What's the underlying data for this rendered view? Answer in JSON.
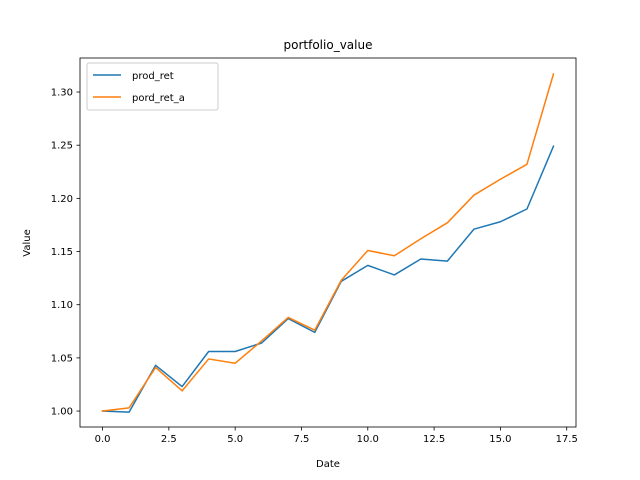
{
  "chart_data": {
    "type": "line",
    "title": "portfolio_value",
    "xlabel": "Date",
    "ylabel": "Value",
    "xlim": [
      -0.85,
      17.85
    ],
    "ylim": [
      0.985,
      1.332
    ],
    "xticks": [
      0.0,
      2.5,
      5.0,
      7.5,
      10.0,
      12.5,
      15.0,
      17.5
    ],
    "xtick_labels": [
      "0.0",
      "2.5",
      "5.0",
      "7.5",
      "10.0",
      "12.5",
      "15.0",
      "17.5"
    ],
    "yticks": [
      1.0,
      1.05,
      1.1,
      1.15,
      1.2,
      1.25,
      1.3
    ],
    "ytick_labels": [
      "1.00",
      "1.05",
      "1.10",
      "1.15",
      "1.20",
      "1.25",
      "1.30"
    ],
    "grid": false,
    "legend_position": "top-left",
    "x": [
      0,
      1,
      2,
      3,
      4,
      5,
      6,
      7,
      8,
      9,
      10,
      11,
      12,
      13,
      14,
      15,
      16,
      17
    ],
    "series": [
      {
        "name": "prod_ret",
        "color": "#1f77b4",
        "values": [
          1.0,
          0.999,
          1.043,
          1.023,
          1.056,
          1.056,
          1.064,
          1.087,
          1.074,
          1.122,
          1.137,
          1.128,
          1.143,
          1.141,
          1.171,
          1.178,
          1.19,
          1.249
        ]
      },
      {
        "name": "pord_ret_a",
        "color": "#ff7f0e",
        "values": [
          1.0,
          1.003,
          1.041,
          1.019,
          1.049,
          1.045,
          1.066,
          1.088,
          1.076,
          1.123,
          1.151,
          1.146,
          1.162,
          1.177,
          1.203,
          1.218,
          1.232,
          1.317
        ]
      }
    ]
  }
}
